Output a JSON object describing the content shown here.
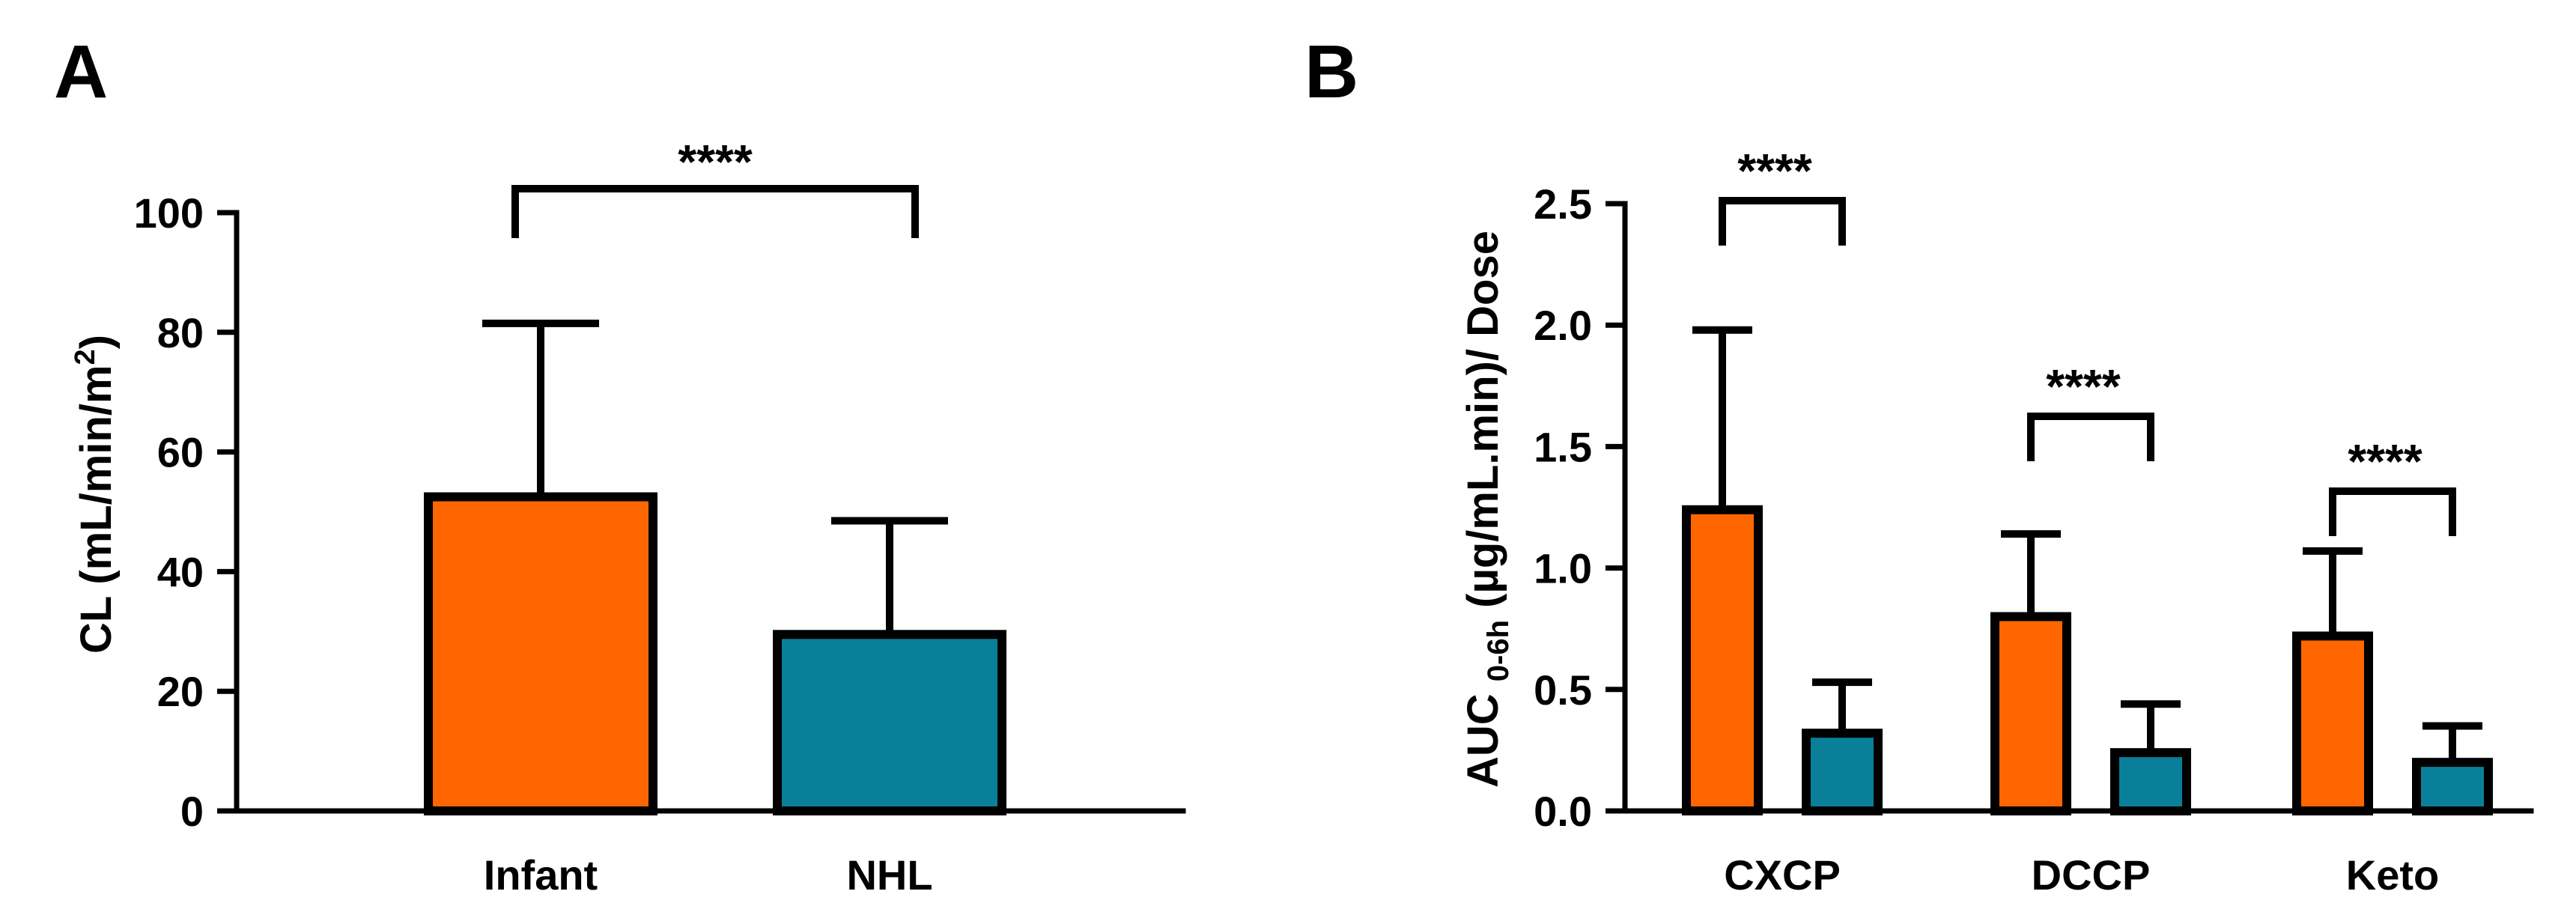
{
  "colors": {
    "infant": "#FF6600",
    "nhl": "#0A7F9A"
  },
  "chart_data": [
    {
      "panel": "A",
      "type": "bar",
      "title": "",
      "xlabel": "",
      "ylabel": "CL (mL/min/m²)",
      "ylabel_main": "CL (mL/min/m",
      "ylabel_sup": "2",
      "ylabel_tail": ")",
      "ylim": [
        0,
        100
      ],
      "yticks": [
        0,
        20,
        40,
        60,
        80,
        100
      ],
      "categories": [
        "Infant",
        "NHL"
      ],
      "values": [
        52.5,
        29.5
      ],
      "errors": [
        29,
        19
      ],
      "significance": [
        {
          "from": 0,
          "to": 1,
          "label": "****"
        }
      ]
    },
    {
      "panel": "B",
      "type": "bar",
      "title": "",
      "xlabel": "",
      "ylabel": "AUC 0-6h (µg/mL.min)/ Dose",
      "ylabel_main": "AUC ",
      "ylabel_sub": "0-6h",
      "ylabel_tail": " (µg/mL.min)/ Dose",
      "ylim": [
        0,
        2.5
      ],
      "yticks": [
        "0.0",
        "0.5",
        "1.0",
        "1.5",
        "2.0",
        "2.5"
      ],
      "categories": [
        "CXCP",
        "DCCP",
        "Keto"
      ],
      "series": [
        {
          "name": "Infant",
          "values": [
            1.24,
            0.8,
            0.72
          ],
          "errors": [
            0.74,
            0.34,
            0.35
          ]
        },
        {
          "name": "NHL",
          "values": [
            0.32,
            0.24,
            0.2
          ],
          "errors": [
            0.21,
            0.2,
            0.15
          ]
        }
      ],
      "significance": [
        {
          "category": 0,
          "label": "****"
        },
        {
          "category": 1,
          "label": "****"
        },
        {
          "category": 2,
          "label": "****"
        }
      ]
    }
  ]
}
